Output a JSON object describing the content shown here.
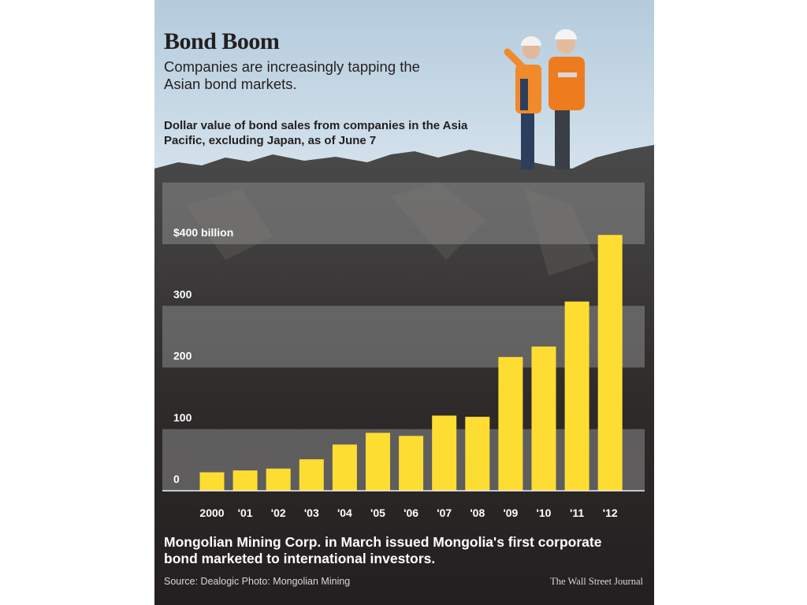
{
  "graphic": {
    "title": "Bond Boom",
    "subtitle": "Companies are increasingly tapping the Asian bond markets.",
    "chart_description": "Dollar value of bond sales from companies in the Asia Pacific, excluding Japan, as of June 7",
    "caption": "Mongolian Mining Corp. in March issued Mongolia's first corporate bond marketed to international investors.",
    "source": "Source: Dealogic   Photo: Mongolian Mining",
    "credit": "The Wall Street Journal"
  },
  "colors": {
    "bar": "#fedd33",
    "band": "#8a8a8a",
    "panel_dark": "#231f20",
    "sky": "#c2d6e4"
  },
  "chart_data": {
    "type": "bar",
    "categories": [
      "2000",
      "'01",
      "'02",
      "'03",
      "'04",
      "'05",
      "'06",
      "'07",
      "'08",
      "'09",
      "'10",
      "'11",
      "'12"
    ],
    "values": [
      30,
      33,
      36,
      51,
      75,
      94,
      89,
      122,
      120,
      217,
      234,
      307,
      415
    ],
    "ylim": [
      0,
      420
    ],
    "yticks": [
      {
        "value": 0,
        "label": "0"
      },
      {
        "value": 100,
        "label": "100"
      },
      {
        "value": 200,
        "label": "200"
      },
      {
        "value": 300,
        "label": "300"
      },
      {
        "value": 400,
        "label": "$400 billion"
      }
    ],
    "grid": "alternating bands"
  }
}
